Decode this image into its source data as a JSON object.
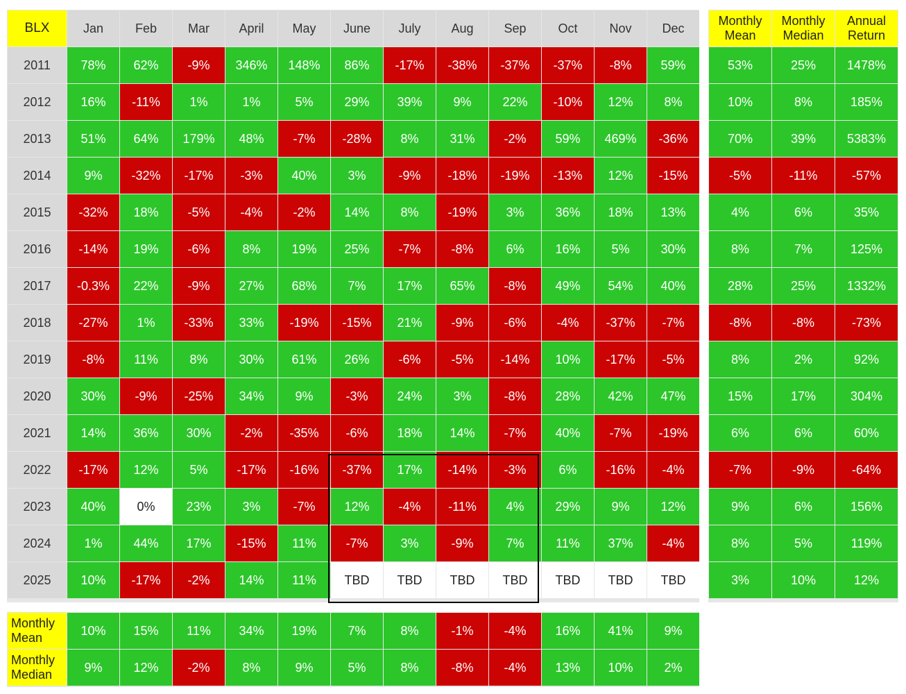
{
  "chart_data": {
    "type": "table",
    "corner_label": "BLX",
    "months": [
      "Jan",
      "Feb",
      "Mar",
      "April",
      "May",
      "June",
      "July",
      "Aug",
      "Sep",
      "Oct",
      "Nov",
      "Dec"
    ],
    "summary_headers": [
      "Monthly Mean",
      "Monthly Median",
      "Annual Return"
    ],
    "rows": [
      {
        "year": "2011",
        "months": [
          "78%",
          "62%",
          "-9%",
          "346%",
          "148%",
          "86%",
          "-17%",
          "-38%",
          "-37%",
          "-37%",
          "-8%",
          "59%"
        ],
        "summary": [
          "53%",
          "25%",
          "1478%"
        ]
      },
      {
        "year": "2012",
        "months": [
          "16%",
          "-11%",
          "1%",
          "1%",
          "5%",
          "29%",
          "39%",
          "9%",
          "22%",
          "-10%",
          "12%",
          "8%"
        ],
        "summary": [
          "10%",
          "8%",
          "185%"
        ]
      },
      {
        "year": "2013",
        "months": [
          "51%",
          "64%",
          "179%",
          "48%",
          "-7%",
          "-28%",
          "8%",
          "31%",
          "-2%",
          "59%",
          "469%",
          "-36%"
        ],
        "summary": [
          "70%",
          "39%",
          "5383%"
        ]
      },
      {
        "year": "2014",
        "months": [
          "9%",
          "-32%",
          "-17%",
          "-3%",
          "40%",
          "3%",
          "-9%",
          "-18%",
          "-19%",
          "-13%",
          "12%",
          "-15%"
        ],
        "summary": [
          "-5%",
          "-11%",
          "-57%"
        ]
      },
      {
        "year": "2015",
        "months": [
          "-32%",
          "18%",
          "-5%",
          "-4%",
          "-2%",
          "14%",
          "8%",
          "-19%",
          "3%",
          "36%",
          "18%",
          "13%"
        ],
        "summary": [
          "4%",
          "6%",
          "35%"
        ]
      },
      {
        "year": "2016",
        "months": [
          "-14%",
          "19%",
          "-6%",
          "8%",
          "19%",
          "25%",
          "-7%",
          "-8%",
          "6%",
          "16%",
          "5%",
          "30%"
        ],
        "summary": [
          "8%",
          "7%",
          "125%"
        ]
      },
      {
        "year": "2017",
        "months": [
          "-0.3%",
          "22%",
          "-9%",
          "27%",
          "68%",
          "7%",
          "17%",
          "65%",
          "-8%",
          "49%",
          "54%",
          "40%"
        ],
        "summary": [
          "28%",
          "25%",
          "1332%"
        ]
      },
      {
        "year": "2018",
        "months": [
          "-27%",
          "1%",
          "-33%",
          "33%",
          "-19%",
          "-15%",
          "21%",
          "-9%",
          "-6%",
          "-4%",
          "-37%",
          "-7%"
        ],
        "summary": [
          "-8%",
          "-8%",
          "-73%"
        ]
      },
      {
        "year": "2019",
        "months": [
          "-8%",
          "11%",
          "8%",
          "30%",
          "61%",
          "26%",
          "-6%",
          "-5%",
          "-14%",
          "10%",
          "-17%",
          "-5%"
        ],
        "summary": [
          "8%",
          "2%",
          "92%"
        ]
      },
      {
        "year": "2020",
        "months": [
          "30%",
          "-9%",
          "-25%",
          "34%",
          "9%",
          "-3%",
          "24%",
          "3%",
          "-8%",
          "28%",
          "42%",
          "47%"
        ],
        "summary": [
          "15%",
          "17%",
          "304%"
        ]
      },
      {
        "year": "2021",
        "months": [
          "14%",
          "36%",
          "30%",
          "-2%",
          "-35%",
          "-6%",
          "18%",
          "14%",
          "-7%",
          "40%",
          "-7%",
          "-19%"
        ],
        "summary": [
          "6%",
          "6%",
          "60%"
        ]
      },
      {
        "year": "2022",
        "months": [
          "-17%",
          "12%",
          "5%",
          "-17%",
          "-16%",
          "-37%",
          "17%",
          "-14%",
          "-3%",
          "6%",
          "-16%",
          "-4%"
        ],
        "summary": [
          "-7%",
          "-9%",
          "-64%"
        ]
      },
      {
        "year": "2023",
        "months": [
          "40%",
          "0%",
          "23%",
          "3%",
          "-7%",
          "12%",
          "-4%",
          "-11%",
          "4%",
          "29%",
          "9%",
          "12%"
        ],
        "summary": [
          "9%",
          "6%",
          "156%"
        ]
      },
      {
        "year": "2024",
        "months": [
          "1%",
          "44%",
          "17%",
          "-15%",
          "11%",
          "-7%",
          "3%",
          "-9%",
          "7%",
          "11%",
          "37%",
          "-4%"
        ],
        "summary": [
          "8%",
          "5%",
          "119%"
        ]
      },
      {
        "year": "2025",
        "months": [
          "10%",
          "-17%",
          "-2%",
          "14%",
          "11%",
          "TBD",
          "TBD",
          "TBD",
          "TBD",
          "TBD",
          "TBD",
          "TBD"
        ],
        "summary": [
          "3%",
          "10%",
          "12%"
        ]
      }
    ],
    "bottom_rows": [
      {
        "label": "Monthly Mean",
        "values": [
          "10%",
          "15%",
          "11%",
          "34%",
          "19%",
          "7%",
          "8%",
          "-1%",
          "-4%",
          "16%",
          "41%",
          "9%"
        ]
      },
      {
        "label": "Monthly Median",
        "values": [
          "9%",
          "12%",
          "-2%",
          "8%",
          "9%",
          "5%",
          "8%",
          "-8%",
          "-4%",
          "13%",
          "10%",
          "2%"
        ]
      }
    ],
    "colors": {
      "positive": "#2cc62a",
      "negative": "#cc0303",
      "neutral": "#ffffff",
      "header": "#d9d9d9",
      "highlight_header": "#ffff00"
    }
  }
}
